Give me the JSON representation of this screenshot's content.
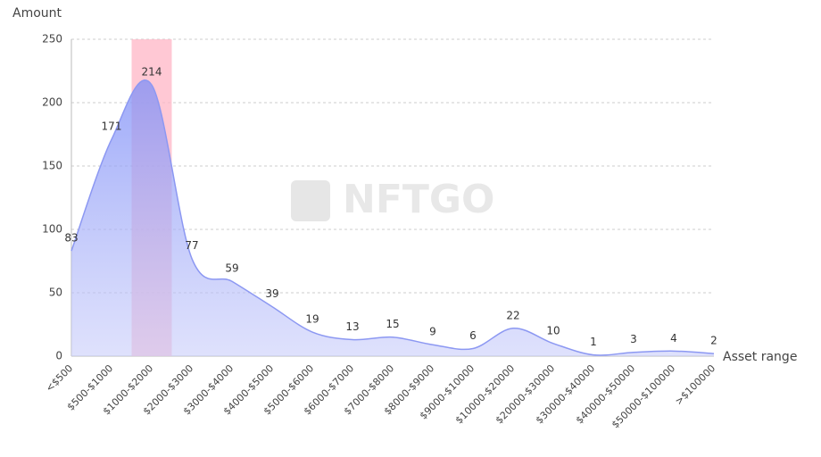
{
  "chart_data": {
    "type": "area",
    "y_label": "Amount",
    "x_label": "Asset range",
    "watermark": "NFTGO",
    "categories": [
      "<$500",
      "$500-$1000",
      "$1000-$2000",
      "$2000-$3000",
      "$3000-$4000",
      "$4000-$5000",
      "$5000-$6000",
      "$6000-$7000",
      "$7000-$8000",
      "$8000-$9000",
      "$9000-$10000",
      "$10000-$20000",
      "$20000-$30000",
      "$30000-$40000",
      "$40000-$50000",
      "$50000-$100000",
      ">$100000"
    ],
    "values": [
      83,
      171,
      214,
      77,
      59,
      39,
      19,
      13,
      15,
      9,
      6,
      22,
      10,
      1,
      3,
      4,
      2
    ],
    "color": "#8c98f2",
    "highlight": 2,
    "highlight_color": "#ffb6c6",
    "ylim": [
      0,
      250
    ],
    "yticks": [
      0,
      50,
      100,
      150,
      200,
      250
    ],
    "grid": true
  }
}
